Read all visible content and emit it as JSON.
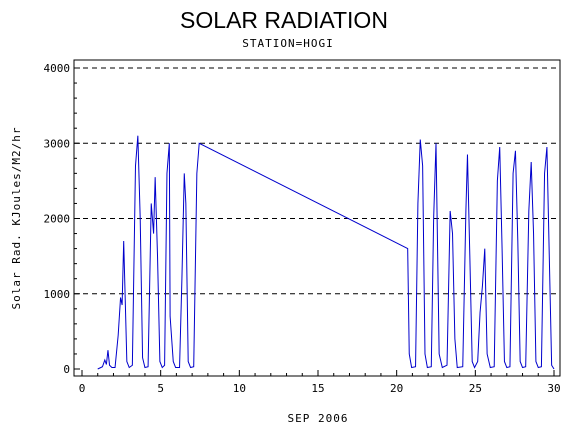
{
  "chart_data": {
    "type": "line",
    "title": "SOLAR RADIATION",
    "subtitle": "STATION=HOGI",
    "xlabel": "SEP 2006",
    "ylabel": "Solar Rad. KJoules/M2/hr",
    "xlim": [
      0,
      30
    ],
    "ylim": [
      0,
      4000
    ],
    "xticks": [
      0,
      5,
      10,
      15,
      20,
      25,
      30
    ],
    "yticks": [
      0,
      1000,
      2000,
      3000,
      4000
    ],
    "grid": "horizontal-dashed",
    "line_color": "#0000cc",
    "series": [
      {
        "points": [
          [
            1.0,
            0
          ],
          [
            1.3,
            30
          ],
          [
            1.45,
            120
          ],
          [
            1.55,
            60
          ],
          [
            1.65,
            250
          ],
          [
            1.75,
            50
          ],
          [
            1.9,
            20
          ],
          [
            2.1,
            20
          ],
          [
            2.3,
            450
          ],
          [
            2.45,
            950
          ],
          [
            2.55,
            850
          ],
          [
            2.65,
            1700
          ],
          [
            2.75,
            900
          ],
          [
            2.85,
            100
          ],
          [
            3.0,
            20
          ],
          [
            3.2,
            50
          ],
          [
            3.4,
            2700
          ],
          [
            3.55,
            3100
          ],
          [
            3.7,
            2000
          ],
          [
            3.85,
            150
          ],
          [
            4.0,
            20
          ],
          [
            4.2,
            30
          ],
          [
            4.4,
            2200
          ],
          [
            4.55,
            1800
          ],
          [
            4.65,
            2550
          ],
          [
            4.8,
            1500
          ],
          [
            4.95,
            100
          ],
          [
            5.1,
            20
          ],
          [
            5.25,
            50
          ],
          [
            5.4,
            2600
          ],
          [
            5.55,
            3000
          ],
          [
            5.6,
            700
          ],
          [
            5.7,
            400
          ],
          [
            5.8,
            100
          ],
          [
            5.95,
            20
          ],
          [
            6.2,
            20
          ],
          [
            6.35,
            1200
          ],
          [
            6.5,
            2600
          ],
          [
            6.6,
            2200
          ],
          [
            6.75,
            100
          ],
          [
            6.9,
            20
          ],
          [
            7.1,
            30
          ],
          [
            7.3,
            2600
          ],
          [
            7.45,
            3000
          ],
          [
            20.7,
            1600
          ],
          [
            20.8,
            200
          ],
          [
            20.95,
            20
          ],
          [
            21.2,
            30
          ],
          [
            21.35,
            2200
          ],
          [
            21.5,
            3050
          ],
          [
            21.65,
            2700
          ],
          [
            21.8,
            200
          ],
          [
            21.95,
            20
          ],
          [
            22.2,
            30
          ],
          [
            22.35,
            2000
          ],
          [
            22.5,
            3000
          ],
          [
            22.7,
            200
          ],
          [
            22.9,
            20
          ],
          [
            23.2,
            50
          ],
          [
            23.4,
            2100
          ],
          [
            23.55,
            1800
          ],
          [
            23.7,
            400
          ],
          [
            23.85,
            20
          ],
          [
            24.2,
            30
          ],
          [
            24.4,
            2100
          ],
          [
            24.5,
            2850
          ],
          [
            24.65,
            1500
          ],
          [
            24.8,
            100
          ],
          [
            24.95,
            20
          ],
          [
            25.15,
            100
          ],
          [
            25.3,
            750
          ],
          [
            25.45,
            1100
          ],
          [
            25.6,
            1600
          ],
          [
            25.75,
            200
          ],
          [
            25.95,
            20
          ],
          [
            26.2,
            30
          ],
          [
            26.4,
            2500
          ],
          [
            26.55,
            2950
          ],
          [
            26.7,
            1600
          ],
          [
            26.85,
            100
          ],
          [
            27.0,
            20
          ],
          [
            27.2,
            30
          ],
          [
            27.4,
            2600
          ],
          [
            27.55,
            2900
          ],
          [
            27.7,
            1700
          ],
          [
            27.85,
            100
          ],
          [
            28.0,
            20
          ],
          [
            28.2,
            30
          ],
          [
            28.4,
            2100
          ],
          [
            28.55,
            2750
          ],
          [
            28.7,
            1800
          ],
          [
            28.85,
            100
          ],
          [
            29.0,
            20
          ],
          [
            29.2,
            30
          ],
          [
            29.4,
            2600
          ],
          [
            29.55,
            2950
          ],
          [
            29.7,
            1500
          ],
          [
            29.85,
            50
          ],
          [
            30.0,
            0
          ]
        ]
      }
    ]
  }
}
